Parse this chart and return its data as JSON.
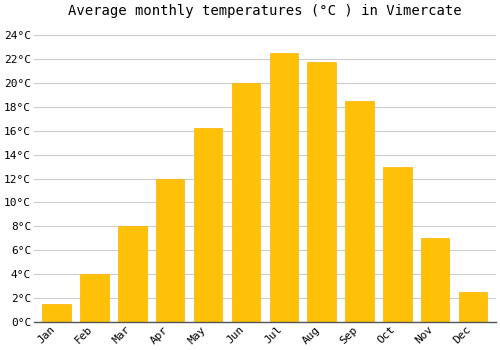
{
  "title": "Average monthly temperatures (°C ) in Vimercate",
  "months": [
    "Jan",
    "Feb",
    "Mar",
    "Apr",
    "May",
    "Jun",
    "Jul",
    "Aug",
    "Sep",
    "Oct",
    "Nov",
    "Dec"
  ],
  "values": [
    1.5,
    4.0,
    8.0,
    12.0,
    16.2,
    20.0,
    22.5,
    21.8,
    18.5,
    13.0,
    7.0,
    2.5
  ],
  "bar_color_face": "#FFC107",
  "bar_color_edge": "#FFB300",
  "background_color": "#ffffff",
  "grid_color": "#cccccc",
  "ytick_labels": [
    "0°C",
    "2°C",
    "4°C",
    "6°C",
    "8°C",
    "10°C",
    "12°C",
    "14°C",
    "16°C",
    "18°C",
    "20°C",
    "22°C",
    "24°C"
  ],
  "ytick_values": [
    0,
    2,
    4,
    6,
    8,
    10,
    12,
    14,
    16,
    18,
    20,
    22,
    24
  ],
  "ylim": [
    0,
    25
  ],
  "title_fontsize": 10,
  "tick_fontsize": 8,
  "font_family": "monospace",
  "bar_width": 0.75,
  "figsize": [
    5.0,
    3.5
  ],
  "dpi": 100
}
